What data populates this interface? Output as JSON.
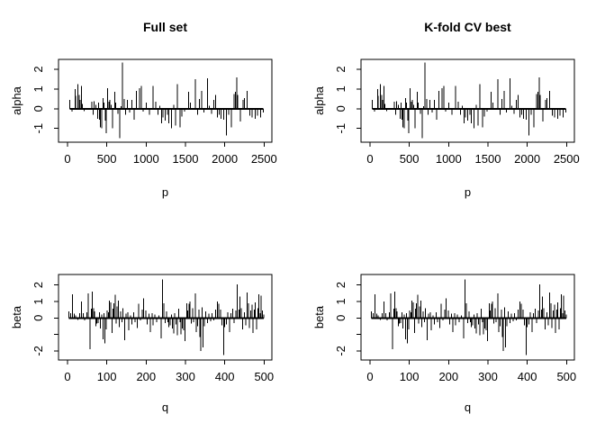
{
  "figure": {
    "background": "#ffffff",
    "text_color": "#000000",
    "description": "2x2 grid of spike (needle) coefficient plots"
  },
  "chart_data": {
    "type": "bar",
    "variant": "spike-needle",
    "layout": "2x2-grid",
    "panels": [
      {
        "id": "full-set-alpha",
        "grid": [
          0,
          0
        ],
        "title": "Full set",
        "xlabel": "p",
        "ylabel": "alpha",
        "series": "alpha",
        "xlim": [
          0,
          2500
        ],
        "ylim": [
          -1.7,
          2.5
        ],
        "xticks": [
          0,
          500,
          1000,
          1500,
          2000,
          2500
        ],
        "yticks": [
          -1,
          0,
          1,
          2
        ],
        "ytick_labels": [
          "-1",
          "0",
          "1",
          "2"
        ],
        "grid_lines": false
      },
      {
        "id": "kfold-cv-alpha",
        "grid": [
          0,
          1
        ],
        "title": "K-fold CV best",
        "xlabel": "p",
        "ylabel": "alpha",
        "series": "alpha",
        "xlim": [
          0,
          2500
        ],
        "ylim": [
          -1.7,
          2.5
        ],
        "xticks": [
          0,
          500,
          1000,
          1500,
          2000,
          2500
        ],
        "yticks": [
          -1,
          0,
          1,
          2
        ],
        "ytick_labels": [
          "-1",
          "0",
          "1",
          "2"
        ],
        "grid_lines": false
      },
      {
        "id": "full-set-beta",
        "grid": [
          1,
          0
        ],
        "title": "",
        "xlabel": "q",
        "ylabel": "beta",
        "series": "beta",
        "xlim": [
          0,
          500
        ],
        "ylim": [
          -2.55,
          2.65
        ],
        "xticks": [
          0,
          100,
          200,
          300,
          400,
          500
        ],
        "yticks": [
          -2,
          -1,
          0,
          1,
          2
        ],
        "ytick_labels": [
          "-2",
          "",
          "0",
          "1",
          "2"
        ],
        "grid_lines": false
      },
      {
        "id": "kfold-cv-beta",
        "grid": [
          1,
          1
        ],
        "title": "",
        "xlabel": "q",
        "ylabel": "beta",
        "series": "beta",
        "xlim": [
          0,
          500
        ],
        "ylim": [
          -2.55,
          2.65
        ],
        "xticks": [
          0,
          100,
          200,
          300,
          400,
          500
        ],
        "yticks": [
          -2,
          -1,
          0,
          1,
          2
        ],
        "ytick_labels": [
          "-2",
          "",
          "0",
          "1",
          "2"
        ],
        "grid_lines": false
      }
    ],
    "series": {
      "alpha": [
        [
          30,
          0.45
        ],
        [
          55,
          -0.15
        ],
        [
          95,
          1.0
        ],
        [
          105,
          0.65
        ],
        [
          130,
          1.25
        ],
        [
          150,
          0.7
        ],
        [
          160,
          0.45
        ],
        [
          175,
          1.15
        ],
        [
          190,
          0.25
        ],
        [
          210,
          -0.12
        ],
        [
          310,
          0.35
        ],
        [
          325,
          -0.3
        ],
        [
          340,
          0.38
        ],
        [
          360,
          0.2
        ],
        [
          385,
          -0.5
        ],
        [
          395,
          0.3
        ],
        [
          405,
          -0.55
        ],
        [
          420,
          -0.95
        ],
        [
          435,
          -1.0
        ],
        [
          450,
          0.55
        ],
        [
          465,
          0.3
        ],
        [
          480,
          -0.6
        ],
        [
          495,
          -1.25
        ],
        [
          510,
          1.05
        ],
        [
          525,
          0.35
        ],
        [
          540,
          0.45
        ],
        [
          555,
          0.2
        ],
        [
          575,
          -1.0
        ],
        [
          600,
          0.85
        ],
        [
          615,
          0.3
        ],
        [
          640,
          -0.25
        ],
        [
          665,
          -1.5
        ],
        [
          680,
          0.12
        ],
        [
          700,
          2.35
        ],
        [
          720,
          0.5
        ],
        [
          740,
          -0.3
        ],
        [
          760,
          0.45
        ],
        [
          790,
          -0.2
        ],
        [
          820,
          0.45
        ],
        [
          850,
          -0.55
        ],
        [
          875,
          0.9
        ],
        [
          915,
          1.05
        ],
        [
          940,
          1.15
        ],
        [
          960,
          -0.15
        ],
        [
          1000,
          0.3
        ],
        [
          1040,
          -0.3
        ],
        [
          1090,
          1.15
        ],
        [
          1125,
          0.35
        ],
        [
          1150,
          -0.3
        ],
        [
          1175,
          0.15
        ],
        [
          1195,
          -0.75
        ],
        [
          1215,
          -0.45
        ],
        [
          1245,
          -0.6
        ],
        [
          1270,
          -0.3
        ],
        [
          1290,
          -0.75
        ],
        [
          1320,
          -1.0
        ],
        [
          1350,
          0.2
        ],
        [
          1375,
          -0.85
        ],
        [
          1400,
          1.25
        ],
        [
          1430,
          -0.95
        ],
        [
          1455,
          -0.4
        ],
        [
          1490,
          -0.15
        ],
        [
          1540,
          0.85
        ],
        [
          1565,
          0.3
        ],
        [
          1625,
          1.5
        ],
        [
          1655,
          -0.3
        ],
        [
          1680,
          0.5
        ],
        [
          1705,
          0.9
        ],
        [
          1735,
          -0.2
        ],
        [
          1780,
          1.55
        ],
        [
          1805,
          0.15
        ],
        [
          1835,
          -0.25
        ],
        [
          1860,
          0.45
        ],
        [
          1885,
          0.7
        ],
        [
          1905,
          -0.45
        ],
        [
          1930,
          -0.3
        ],
        [
          1955,
          -0.5
        ],
        [
          1985,
          -0.55
        ],
        [
          2020,
          -1.35
        ],
        [
          2050,
          -0.3
        ],
        [
          2085,
          -0.95
        ],
        [
          2120,
          0.75
        ],
        [
          2138,
          0.85
        ],
        [
          2152,
          1.6
        ],
        [
          2166,
          0.7
        ],
        [
          2200,
          -0.65
        ],
        [
          2232,
          0.45
        ],
        [
          2248,
          0.55
        ],
        [
          2285,
          0.9
        ],
        [
          2320,
          -0.35
        ],
        [
          2345,
          -0.45
        ],
        [
          2385,
          -0.5
        ],
        [
          2415,
          -0.35
        ],
        [
          2455,
          -0.45
        ],
        [
          2490,
          -0.2
        ]
      ],
      "beta": [
        [
          4,
          0.4
        ],
        [
          8,
          0.3
        ],
        [
          13,
          1.45
        ],
        [
          17,
          0.25
        ],
        [
          21,
          0.15
        ],
        [
          26,
          -0.12
        ],
        [
          31,
          0.3
        ],
        [
          36,
          1.0
        ],
        [
          40,
          0.3
        ],
        [
          44,
          -0.15
        ],
        [
          49,
          0.35
        ],
        [
          53,
          1.5
        ],
        [
          57,
          -1.9
        ],
        [
          61,
          0.55
        ],
        [
          63,
          1.6
        ],
        [
          66,
          0.6
        ],
        [
          69,
          0.4
        ],
        [
          72,
          -0.5
        ],
        [
          75,
          -0.35
        ],
        [
          78,
          -0.3
        ],
        [
          81,
          0.35
        ],
        [
          84,
          -0.65
        ],
        [
          87,
          0.2
        ],
        [
          90,
          -1.3
        ],
        [
          93,
          0.3
        ],
        [
          95,
          -1.55
        ],
        [
          98,
          -0.7
        ],
        [
          101,
          0.45
        ],
        [
          104,
          0.35
        ],
        [
          107,
          1.05
        ],
        [
          110,
          0.95
        ],
        [
          113,
          -0.9
        ],
        [
          116,
          0.55
        ],
        [
          118,
          0.9
        ],
        [
          121,
          1.4
        ],
        [
          124,
          -0.35
        ],
        [
          126,
          0.7
        ],
        [
          129,
          1.05
        ],
        [
          132,
          -0.55
        ],
        [
          135,
          0.4
        ],
        [
          138,
          -0.25
        ],
        [
          141,
          0.6
        ],
        [
          146,
          -1.35
        ],
        [
          149,
          0.25
        ],
        [
          153,
          0.35
        ],
        [
          156,
          -0.75
        ],
        [
          160,
          0.15
        ],
        [
          164,
          -0.4
        ],
        [
          168,
          0.35
        ],
        [
          172,
          -0.25
        ],
        [
          177,
          -0.6
        ],
        [
          181,
          0.85
        ],
        [
          186,
          -0.15
        ],
        [
          190,
          0.5
        ],
        [
          194,
          1.2
        ],
        [
          199,
          0.45
        ],
        [
          203,
          -0.4
        ],
        [
          207,
          0.25
        ],
        [
          211,
          -0.85
        ],
        [
          215,
          0.3
        ],
        [
          218,
          -0.45
        ],
        [
          222,
          0.2
        ],
        [
          227,
          -0.25
        ],
        [
          232,
          0.15
        ],
        [
          238,
          -1.25
        ],
        [
          242,
          2.35
        ],
        [
          245,
          0.9
        ],
        [
          248,
          -0.3
        ],
        [
          252,
          0.4
        ],
        [
          255,
          -0.25
        ],
        [
          258,
          -0.55
        ],
        [
          261,
          -0.45
        ],
        [
          264,
          0.2
        ],
        [
          267,
          -0.65
        ],
        [
          270,
          -0.95
        ],
        [
          273,
          0.3
        ],
        [
          276,
          -0.4
        ],
        [
          279,
          -1.05
        ],
        [
          283,
          0.55
        ],
        [
          286,
          -0.25
        ],
        [
          289,
          -1.0
        ],
        [
          292,
          -0.65
        ],
        [
          295,
          -0.75
        ],
        [
          299,
          -1.4
        ],
        [
          303,
          0.9
        ],
        [
          306,
          0.45
        ],
        [
          309,
          0.85
        ],
        [
          312,
          1.0
        ],
        [
          315,
          -0.35
        ],
        [
          318,
          0.6
        ],
        [
          321,
          -0.25
        ],
        [
          325,
          1.5
        ],
        [
          328,
          -0.85
        ],
        [
          331,
          -0.5
        ],
        [
          334,
          0.5
        ],
        [
          337,
          -1.15
        ],
        [
          339,
          -2.0
        ],
        [
          342,
          0.65
        ],
        [
          345,
          -1.8
        ],
        [
          348,
          -0.5
        ],
        [
          352,
          0.4
        ],
        [
          356,
          -0.3
        ],
        [
          360,
          0.25
        ],
        [
          364,
          -0.2
        ],
        [
          368,
          0.3
        ],
        [
          372,
          -0.15
        ],
        [
          377,
          0.5
        ],
        [
          381,
          1.0
        ],
        [
          385,
          0.85
        ],
        [
          389,
          0.5
        ],
        [
          393,
          -0.45
        ],
        [
          397,
          -2.25
        ],
        [
          400,
          -0.55
        ],
        [
          404,
          -0.4
        ],
        [
          408,
          0.35
        ],
        [
          412,
          -0.85
        ],
        [
          416,
          0.3
        ],
        [
          420,
          0.55
        ],
        [
          424,
          -0.3
        ],
        [
          428,
          0.45
        ],
        [
          432,
          2.05
        ],
        [
          436,
          0.5
        ],
        [
          439,
          1.3
        ],
        [
          442,
          0.6
        ],
        [
          446,
          -0.7
        ],
        [
          450,
          0.35
        ],
        [
          453,
          -0.45
        ],
        [
          457,
          1.55
        ],
        [
          460,
          0.9
        ],
        [
          463,
          -0.6
        ],
        [
          466,
          0.45
        ],
        [
          469,
          0.8
        ],
        [
          472,
          -0.9
        ],
        [
          475,
          0.5
        ],
        [
          478,
          0.95
        ],
        [
          481,
          -0.7
        ],
        [
          484,
          0.6
        ],
        [
          487,
          1.45
        ],
        [
          490,
          0.3
        ],
        [
          493,
          1.35
        ],
        [
          496,
          0.45
        ],
        [
          499,
          0.2
        ]
      ],
      "spike_color": "#000000"
    }
  }
}
